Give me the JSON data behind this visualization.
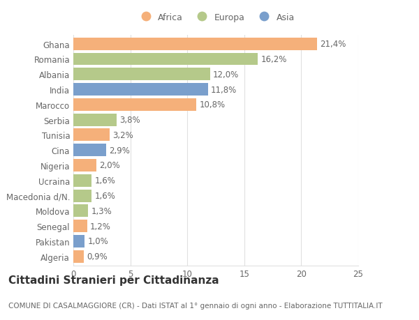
{
  "countries": [
    "Ghana",
    "Romania",
    "Albania",
    "India",
    "Marocco",
    "Serbia",
    "Tunisia",
    "Cina",
    "Nigeria",
    "Ucraina",
    "Macedonia d/N.",
    "Moldova",
    "Senegal",
    "Pakistan",
    "Algeria"
  ],
  "values": [
    21.4,
    16.2,
    12.0,
    11.8,
    10.8,
    3.8,
    3.2,
    2.9,
    2.0,
    1.6,
    1.6,
    1.3,
    1.2,
    1.0,
    0.9
  ],
  "continents": [
    "Africa",
    "Europa",
    "Europa",
    "Asia",
    "Africa",
    "Europa",
    "Africa",
    "Asia",
    "Africa",
    "Europa",
    "Europa",
    "Europa",
    "Africa",
    "Asia",
    "Africa"
  ],
  "labels": [
    "21,4%",
    "16,2%",
    "12,0%",
    "11,8%",
    "10,8%",
    "3,8%",
    "3,2%",
    "2,9%",
    "2,0%",
    "1,6%",
    "1,6%",
    "1,3%",
    "1,2%",
    "1,0%",
    "0,9%"
  ],
  "colors": {
    "Africa": "#F5B07A",
    "Europa": "#B5C98A",
    "Asia": "#7A9FCC"
  },
  "legend_labels": [
    "Africa",
    "Europa",
    "Asia"
  ],
  "legend_colors": [
    "#F5B07A",
    "#B5C98A",
    "#7A9FCC"
  ],
  "title": "Cittadini Stranieri per Cittadinanza",
  "subtitle": "COMUNE DI CASALMAGGIORE (CR) - Dati ISTAT al 1° gennaio di ogni anno - Elaborazione TUTTITALIA.IT",
  "xlim": [
    0,
    25
  ],
  "xticks": [
    0,
    5,
    10,
    15,
    20,
    25
  ],
  "bg_color": "#ffffff",
  "bar_height": 0.82,
  "grid_color": "#e0e0e0",
  "text_color": "#666666",
  "label_fontsize": 8.5,
  "title_fontsize": 11,
  "subtitle_fontsize": 7.5
}
